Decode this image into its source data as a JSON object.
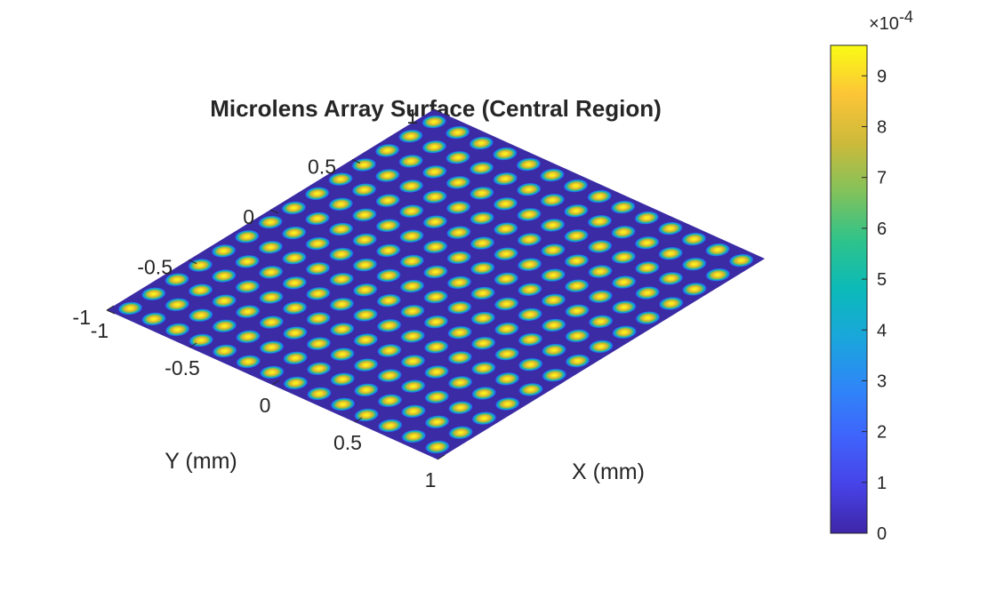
{
  "chart_data": {
    "type": "surface",
    "title": "Microlens Array Surface (Central Region)",
    "xlabel": "X (mm)",
    "ylabel": "Y (mm)",
    "xlim": [
      -1,
      1
    ],
    "ylim": [
      -1,
      1
    ],
    "x_ticks": [
      "-1",
      "-0.5",
      "0",
      "0.5",
      "1"
    ],
    "y_ticks": [
      "-1",
      "-0.5",
      "0",
      "0.5",
      "1"
    ],
    "surface": {
      "lens_grid": [
        14,
        14
      ],
      "lens_pitch_mm": 0.143,
      "lens_peak_height": 0.00096,
      "base_height": 0,
      "colormap": "parula"
    },
    "colorbar": {
      "ticks": [
        "0",
        "1",
        "2",
        "3",
        "4",
        "5",
        "6",
        "7",
        "8",
        "9"
      ],
      "exponent_base": "×10",
      "exponent_power": "-4",
      "clim": [
        0,
        0.00096
      ]
    },
    "grid": false
  }
}
